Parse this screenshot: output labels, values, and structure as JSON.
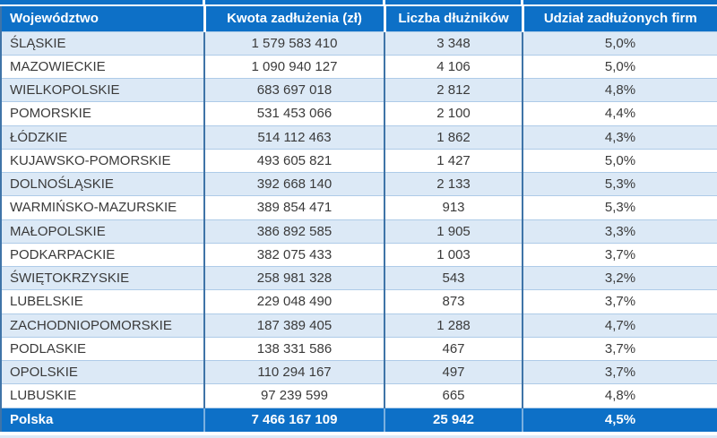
{
  "colors": {
    "accent_blue": "#0d70c7",
    "band_blue": "#dce9f6",
    "divider_blue": "#3f74a8",
    "hairline_blue": "#aecbe8",
    "outer_right_blue": "#a5c6e4",
    "text_dark": "#3a3a3a",
    "header_text": "#ffffff"
  },
  "table": {
    "columns": [
      "Województwo",
      "Kwota zadłużenia (zł)",
      "Liczba dłużników",
      "Udział zadłużonych firm"
    ],
    "rows": [
      {
        "region": "ŚLĄSKIE",
        "debt": "1 579 583 410",
        "debtors": "3 348",
        "share": "5,0%"
      },
      {
        "region": "MAZOWIECKIE",
        "debt": "1 090 940 127",
        "debtors": "4 106",
        "share": "5,0%"
      },
      {
        "region": "WIELKOPOLSKIE",
        "debt": "683 697 018",
        "debtors": "2 812",
        "share": "4,8%"
      },
      {
        "region": "POMORSKIE",
        "debt": "531 453 066",
        "debtors": "2 100",
        "share": "4,4%"
      },
      {
        "region": "ŁÓDZKIE",
        "debt": "514 112 463",
        "debtors": "1 862",
        "share": "4,3%"
      },
      {
        "region": "KUJAWSKO-POMORSKIE",
        "debt": "493 605 821",
        "debtors": "1 427",
        "share": "5,0%"
      },
      {
        "region": "DOLNOŚLĄSKIE",
        "debt": "392 668 140",
        "debtors": "2 133",
        "share": "5,3%"
      },
      {
        "region": "WARMIŃSKO-MAZURSKIE",
        "debt": "389 854 471",
        "debtors": "913",
        "share": "5,3%"
      },
      {
        "region": "MAŁOPOLSKIE",
        "debt": "386 892 585",
        "debtors": "1 905",
        "share": "3,3%"
      },
      {
        "region": "PODKARPACKIE",
        "debt": "382 075 433",
        "debtors": "1 003",
        "share": "3,7%"
      },
      {
        "region": "ŚWIĘTOKRZYSKIE",
        "debt": "258 981 328",
        "debtors": "543",
        "share": "3,2%"
      },
      {
        "region": "LUBELSKIE",
        "debt": "229 048 490",
        "debtors": "873",
        "share": "3,7%"
      },
      {
        "region": "ZACHODNIOPOMORSKIE",
        "debt": "187 389 405",
        "debtors": "1 288",
        "share": "4,7%"
      },
      {
        "region": "PODLASKIE",
        "debt": "138 331 586",
        "debtors": "467",
        "share": "3,7%"
      },
      {
        "region": "OPOLSKIE",
        "debt": "110 294 167",
        "debtors": "497",
        "share": "3,7%"
      },
      {
        "region": "LUBUSKIE",
        "debt": "97 239 599",
        "debtors": "665",
        "share": "4,8%"
      }
    ],
    "total": {
      "region": "Polska",
      "debt": "7 466 167 109",
      "debtors": "25 942",
      "share": "4,5%"
    }
  },
  "chart_data": {
    "type": "table",
    "columns": [
      "Województwo",
      "Kwota zadłużenia (zł)",
      "Liczba dłużników",
      "Udział zadłużonych firm"
    ],
    "rows": [
      [
        "ŚLĄSKIE",
        1579583410,
        3348,
        "5,0%"
      ],
      [
        "MAZOWIECKIE",
        1090940127,
        4106,
        "5,0%"
      ],
      [
        "WIELKOPOLSKIE",
        683697018,
        2812,
        "4,8%"
      ],
      [
        "POMORSKIE",
        531453066,
        2100,
        "4,4%"
      ],
      [
        "ŁÓDZKIE",
        514112463,
        1862,
        "4,3%"
      ],
      [
        "KUJAWSKO-POMORSKIE",
        493605821,
        1427,
        "5,0%"
      ],
      [
        "DOLNOŚLĄSKIE",
        392668140,
        2133,
        "5,3%"
      ],
      [
        "WARMIŃSKO-MAZURSKIE",
        389854471,
        913,
        "5,3%"
      ],
      [
        "MAŁOPOLSKIE",
        386892585,
        1905,
        "3,3%"
      ],
      [
        "PODKARPACKIE",
        382075433,
        1003,
        "3,7%"
      ],
      [
        "ŚWIĘTOKRZYSKIE",
        258981328,
        543,
        "3,2%"
      ],
      [
        "LUBELSKIE",
        229048490,
        873,
        "3,7%"
      ],
      [
        "ZACHODNIOPOMORSKIE",
        187389405,
        1288,
        "4,7%"
      ],
      [
        "PODLASKIE",
        138331586,
        467,
        "3,7%"
      ],
      [
        "OPOLSKIE",
        110294167,
        497,
        "3,7%"
      ],
      [
        "LUBUSKIE",
        97239599,
        665,
        "4,8%"
      ]
    ],
    "total_row": [
      "Polska",
      7466167109,
      25942,
      "4,5%"
    ]
  }
}
